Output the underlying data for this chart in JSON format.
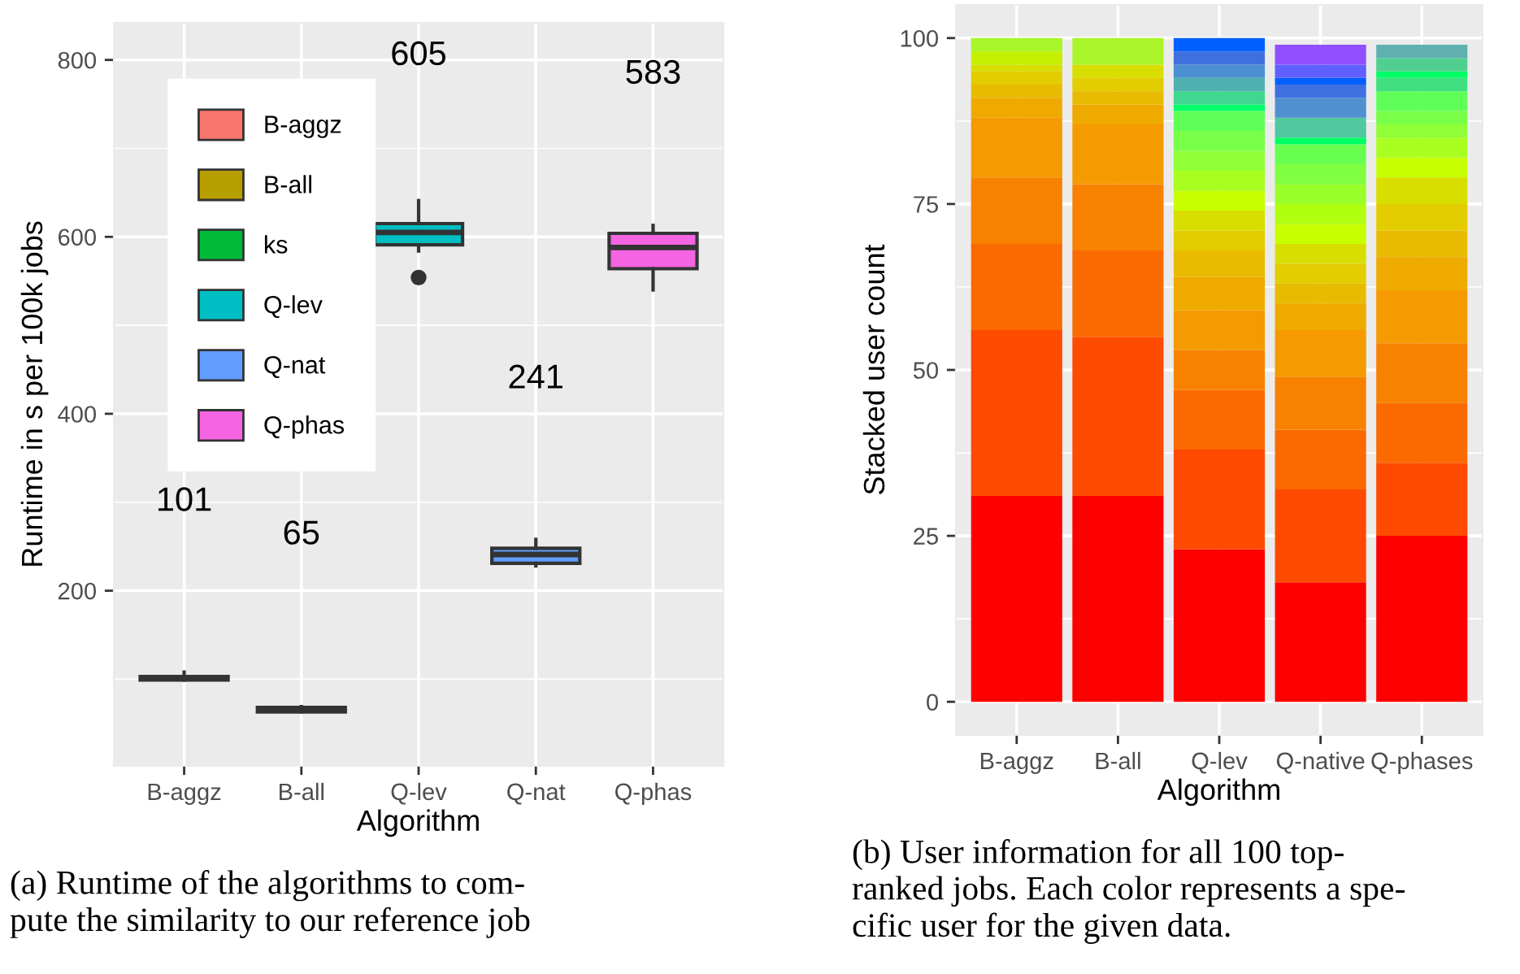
{
  "chart_data": [
    {
      "type": "box",
      "xlabel": "Algorithm",
      "ylabel": "Runtime in s per 100k jobs",
      "categories": [
        "B-aggz",
        "B-all",
        "Q-lev",
        "Q-nat",
        "Q-phas"
      ],
      "ylim": [
        2,
        842
      ],
      "yticks": [
        200,
        400,
        600,
        800
      ],
      "grid": true,
      "legend": "top left",
      "series": [
        {
          "name": "B-aggz",
          "color": "#f8766d",
          "boxes": [
            {
              "low": 99,
              "q1": 99,
              "median": 101,
              "q3": 103,
              "high": 108
            },
            null,
            null,
            null,
            null
          ]
        },
        {
          "name": "B-all",
          "color": "#b79f00",
          "boxes": [
            null,
            {
              "low": 63,
              "q1": 63,
              "median": 66,
              "q3": 68,
              "high": 69
            },
            null,
            null,
            null
          ]
        },
        {
          "name": "ks",
          "color": "#00ba38",
          "boxes": [
            null,
            null,
            null,
            null,
            null
          ]
        },
        {
          "name": "Q-lev",
          "color": "#00bfc4",
          "boxes": [
            null,
            null,
            {
              "low": 584,
              "q1": 591,
              "median": 605,
              "q3": 615,
              "high": 641,
              "outliers": [
                554
              ]
            },
            null,
            null
          ]
        },
        {
          "name": "Q-nat",
          "color": "#619cff",
          "boxes": [
            null,
            null,
            null,
            {
              "low": 228,
              "q1": 231,
              "median": 241,
              "q3": 248,
              "high": 258
            },
            null
          ]
        },
        {
          "name": "Q-phas",
          "color": "#f564e3",
          "boxes": [
            null,
            null,
            null,
            null,
            {
              "low": 540,
              "q1": 564,
              "median": 588,
              "q3": 604,
              "high": 613
            }
          ]
        }
      ],
      "annotations": [
        "101",
        "65",
        "605",
        "241",
        "583",
        "(a) Runtime of the algorithms to com-\npute the similarity to our reference job"
      ]
    },
    {
      "type": "bar",
      "stacked": true,
      "xlabel": "Algorithm",
      "ylabel": "Stacked user count",
      "categories": [
        "B-aggz",
        "B-all",
        "Q-lev",
        "Q-native",
        "Q-phases"
      ],
      "ylim": [
        -5,
        105
      ],
      "yticks": [
        0,
        25,
        50,
        75,
        100
      ],
      "grid": true,
      "series": [
        {
          "values": [
            31,
            31,
            23,
            18,
            25
          ],
          "colors": [
            "#ff0000",
            "#ff0000",
            "#ff0000",
            "#ff0000",
            "#ff0000"
          ]
        },
        {
          "values": [
            25,
            24,
            15,
            14,
            11
          ],
          "colors": [
            "#ff4b00",
            "#ff4b00",
            "#ff4b00",
            "#ff4b00",
            "#ff4b00"
          ]
        },
        {
          "values": [
            13,
            13,
            9,
            9,
            9
          ],
          "colors": [
            "#fb6a00",
            "#fb6a00",
            "#fb6a00",
            "#fb6a00",
            "#fb6a00"
          ]
        },
        {
          "values": [
            10,
            10,
            6,
            8,
            9
          ],
          "colors": [
            "#f88200",
            "#f88200",
            "#f88200",
            "#f88200",
            "#f88200"
          ]
        },
        {
          "values": [
            9,
            9,
            6,
            7,
            8
          ],
          "colors": [
            "#f59a00",
            "#f59a00",
            "#f59a00",
            "#f59a00",
            "#f59a00"
          ]
        },
        {
          "values": [
            3,
            3,
            5,
            4,
            5
          ],
          "colors": [
            "#efaa00",
            "#efaa00",
            "#efaa00",
            "#efaa00",
            "#efaa00"
          ]
        },
        {
          "values": [
            2,
            2,
            4,
            3,
            4
          ],
          "colors": [
            "#e8bb00",
            "#e8bb00",
            "#e8bb00",
            "#e8bb00",
            "#e8bb00"
          ]
        },
        {
          "values": [
            2,
            2,
            3,
            3,
            4
          ],
          "colors": [
            "#e3cc00",
            "#e3cc00",
            "#e3cc00",
            "#e3cc00",
            "#e3cc00"
          ]
        },
        {
          "values": [
            1,
            2,
            3,
            3,
            4
          ],
          "colors": [
            "#d8df00",
            "#d8df00",
            "#d8df00",
            "#d8df00",
            "#d8df00"
          ]
        },
        {
          "values": [
            2,
            4,
            3,
            3,
            3
          ],
          "colors": [
            "#c4f000",
            "#aaf52a",
            "#c8ff00",
            "#c8ff00",
            "#c8ff00"
          ]
        },
        {
          "values": [
            2,
            null,
            3,
            3,
            3
          ],
          "colors": [
            "#a8f52a",
            null,
            "#a8ff20",
            "#b0ff10",
            "#a8ff20"
          ]
        },
        {
          "values": [
            null,
            null,
            3,
            3,
            2
          ],
          "colors": [
            null,
            null,
            "#90ff38",
            "#98ff28",
            "#90ff38"
          ]
        },
        {
          "values": [
            null,
            null,
            3,
            3,
            2
          ],
          "colors": [
            null,
            null,
            "#78ff48",
            "#80ff40",
            "#78ff48"
          ]
        },
        {
          "values": [
            null,
            null,
            3,
            3,
            3
          ],
          "colors": [
            null,
            null,
            "#60ff58",
            "#68ff50",
            "#60ff58"
          ]
        },
        {
          "values": [
            null,
            null,
            1,
            1,
            2
          ],
          "colors": [
            null,
            null,
            "#00ff66",
            "#00ff66",
            "#40e080"
          ]
        },
        {
          "values": [
            null,
            null,
            2,
            3,
            1
          ],
          "colors": [
            null,
            null,
            "#40d890",
            "#50c8a0",
            "#00ff66"
          ]
        },
        {
          "values": [
            null,
            null,
            2,
            3,
            2
          ],
          "colors": [
            null,
            null,
            "#50b0b0",
            "#5090d0",
            "#50d090"
          ]
        },
        {
          "values": [
            null,
            null,
            2,
            2,
            2
          ],
          "colors": [
            null,
            null,
            "#4a90d0",
            "#4070e0",
            "#60b0b0"
          ]
        },
        {
          "values": [
            null,
            null,
            2,
            1,
            null
          ],
          "colors": [
            null,
            null,
            "#4070e0",
            "#0060ff",
            null
          ]
        },
        {
          "values": [
            null,
            null,
            2,
            2,
            null
          ],
          "colors": [
            null,
            null,
            "#0060ff",
            "#6060ff",
            null
          ]
        },
        {
          "values": [
            null,
            null,
            null,
            3,
            null
          ],
          "colors": [
            null,
            null,
            null,
            "#9050ff",
            null
          ]
        }
      ],
      "annotations": [
        "(b) User information for all 100 top-\nranked jobs. Each color represents a spe-\ncific user for the given data."
      ]
    }
  ]
}
